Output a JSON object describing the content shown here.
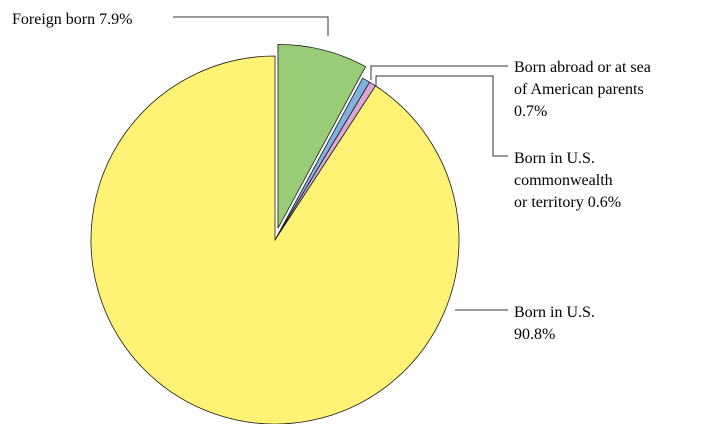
{
  "chart_data": {
    "type": "pie",
    "title": "",
    "legend": "none",
    "slices": [
      {
        "label_lines": [
          "Foreign born 7.9%"
        ],
        "value": 7.9,
        "color": "#99cc77",
        "exploded": true
      },
      {
        "label_lines": [
          "Born abroad or at sea",
          "of American parents",
          "0.7%"
        ],
        "value": 0.7,
        "color": "#7fb2e0",
        "exploded": false
      },
      {
        "label_lines": [
          "Born in U.S.",
          "commonwealth",
          "or territory 0.6%"
        ],
        "value": 0.6,
        "color": "#d9a9d4",
        "exploded": false
      },
      {
        "label_lines": [
          "Born in U.S.",
          "90.8%"
        ],
        "value": 90.8,
        "color": "#fff275",
        "exploded": false
      }
    ]
  }
}
